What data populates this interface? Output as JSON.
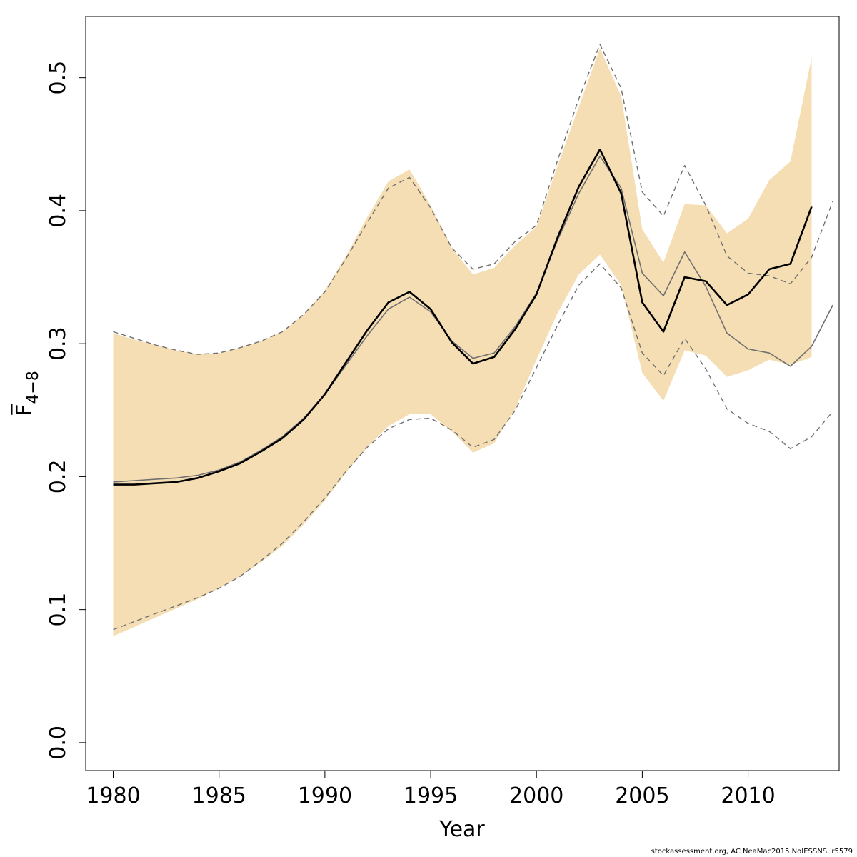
{
  "chart_data": {
    "type": "line",
    "title": "",
    "xlabel": "Year",
    "ylabel": "F̅",
    "ylabel_subscript": "4−8",
    "xlim": [
      1978.7,
      2014.3
    ],
    "ylim": [
      -0.021,
      0.546
    ],
    "x_ticks": [
      1980,
      1985,
      1990,
      1995,
      2000,
      2005,
      2010
    ],
    "x_tick_labels": [
      "1980",
      "1985",
      "1990",
      "1995",
      "2000",
      "2005",
      "2010"
    ],
    "y_ticks": [
      0.0,
      0.1,
      0.2,
      0.3,
      0.4,
      0.5
    ],
    "y_tick_labels": [
      "0.0",
      "0.1",
      "0.2",
      "0.3",
      "0.4",
      "0.5"
    ],
    "grid": false,
    "colors": {
      "band": "#f5deb3",
      "main_line": "#000000",
      "alt_line": "#707070",
      "dashed": "#707070",
      "frame": "#000000"
    },
    "band": {
      "x": [
        1980,
        1981,
        1982,
        1983,
        1984,
        1985,
        1986,
        1987,
        1988,
        1989,
        1990,
        1991,
        1992,
        1993,
        1994,
        1995,
        1996,
        1997,
        1998,
        1999,
        2000,
        2001,
        2002,
        2003,
        2004,
        2005,
        2006,
        2007,
        2008,
        2009,
        2010,
        2011,
        2012,
        2013
      ],
      "upper": [
        0.308,
        0.303,
        0.299,
        0.295,
        0.292,
        0.293,
        0.297,
        0.302,
        0.309,
        0.322,
        0.34,
        0.366,
        0.395,
        0.422,
        0.431,
        0.404,
        0.372,
        0.352,
        0.357,
        0.374,
        0.388,
        0.434,
        0.478,
        0.522,
        0.486,
        0.386,
        0.361,
        0.405,
        0.404,
        0.383,
        0.394,
        0.423,
        0.437,
        0.515
      ],
      "lower": [
        0.08,
        0.087,
        0.094,
        0.101,
        0.108,
        0.116,
        0.125,
        0.136,
        0.148,
        0.164,
        0.182,
        0.203,
        0.222,
        0.238,
        0.247,
        0.247,
        0.234,
        0.218,
        0.225,
        0.251,
        0.288,
        0.323,
        0.352,
        0.367,
        0.344,
        0.278,
        0.257,
        0.295,
        0.291,
        0.275,
        0.28,
        0.288,
        0.284,
        0.29
      ]
    },
    "series": [
      {
        "style": "solid-black",
        "x": [
          1980,
          1981,
          1982,
          1983,
          1984,
          1985,
          1986,
          1987,
          1988,
          1989,
          1990,
          1991,
          1992,
          1993,
          1994,
          1995,
          1996,
          1997,
          1998,
          1999,
          2000,
          2001,
          2002,
          2003,
          2004,
          2005,
          2006,
          2007,
          2008,
          2009,
          2010,
          2011,
          2012,
          2013
        ],
        "values": [
          0.194,
          0.194,
          0.195,
          0.196,
          0.199,
          0.204,
          0.21,
          0.219,
          0.229,
          0.243,
          0.262,
          0.286,
          0.31,
          0.331,
          0.339,
          0.326,
          0.301,
          0.285,
          0.29,
          0.311,
          0.337,
          0.38,
          0.418,
          0.446,
          0.413,
          0.331,
          0.309,
          0.35,
          0.347,
          0.329,
          0.337,
          0.356,
          0.36,
          0.403
        ]
      },
      {
        "style": "solid-grey",
        "x": [
          1980,
          1981,
          1982,
          1983,
          1984,
          1985,
          1986,
          1987,
          1988,
          1989,
          1990,
          1991,
          1992,
          1993,
          1994,
          1995,
          1996,
          1997,
          1998,
          1999,
          2000,
          2001,
          2002,
          2003,
          2004,
          2005,
          2006,
          2007,
          2008,
          2009,
          2010,
          2011,
          2012,
          2013,
          2014
        ],
        "values": [
          0.196,
          0.197,
          0.198,
          0.199,
          0.201,
          0.205,
          0.211,
          0.22,
          0.23,
          0.244,
          0.262,
          0.284,
          0.306,
          0.326,
          0.335,
          0.324,
          0.302,
          0.289,
          0.293,
          0.313,
          0.338,
          0.378,
          0.413,
          0.441,
          0.417,
          0.353,
          0.336,
          0.369,
          0.343,
          0.308,
          0.296,
          0.293,
          0.283,
          0.298,
          0.329
        ]
      },
      {
        "style": "dashed-grey",
        "x": [
          1980,
          1981,
          1982,
          1983,
          1984,
          1985,
          1986,
          1987,
          1988,
          1989,
          1990,
          1991,
          1992,
          1993,
          1994,
          1995,
          1996,
          1997,
          1998,
          1999,
          2000,
          2001,
          2002,
          2003,
          2004,
          2005,
          2006,
          2007,
          2008,
          2009,
          2010,
          2011,
          2012,
          2013,
          2014
        ],
        "values": [
          0.309,
          0.304,
          0.299,
          0.295,
          0.292,
          0.293,
          0.297,
          0.302,
          0.309,
          0.322,
          0.339,
          0.364,
          0.391,
          0.417,
          0.425,
          0.402,
          0.372,
          0.356,
          0.36,
          0.377,
          0.389,
          0.438,
          0.484,
          0.525,
          0.492,
          0.414,
          0.396,
          0.434,
          0.404,
          0.366,
          0.353,
          0.351,
          0.345,
          0.365,
          0.407
        ]
      },
      {
        "style": "dashed-grey",
        "x": [
          1980,
          1981,
          1982,
          1983,
          1984,
          1985,
          1986,
          1987,
          1988,
          1989,
          1990,
          1991,
          1992,
          1993,
          1994,
          1995,
          1996,
          1997,
          1998,
          1999,
          2000,
          2001,
          2002,
          2003,
          2004,
          2005,
          2006,
          2007,
          2008,
          2009,
          2010,
          2011,
          2012,
          2013,
          2014
        ],
        "values": [
          0.085,
          0.091,
          0.097,
          0.103,
          0.109,
          0.116,
          0.125,
          0.137,
          0.15,
          0.166,
          0.184,
          0.204,
          0.222,
          0.236,
          0.243,
          0.244,
          0.235,
          0.222,
          0.228,
          0.25,
          0.282,
          0.314,
          0.344,
          0.36,
          0.342,
          0.293,
          0.276,
          0.304,
          0.281,
          0.251,
          0.24,
          0.234,
          0.221,
          0.23,
          0.249
        ]
      }
    ]
  },
  "credit": "stockassessment.org, AC  NeaMac2015  NoIESSNS, r5579"
}
